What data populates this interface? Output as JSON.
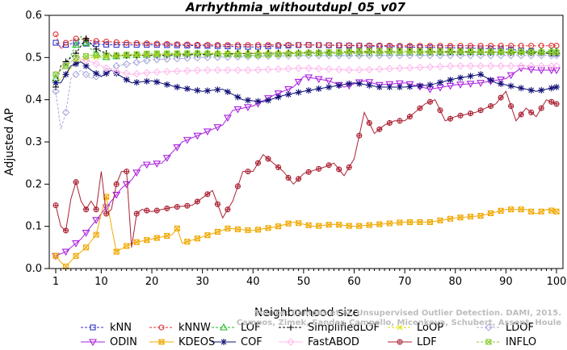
{
  "chart_data": {
    "type": "line",
    "title": "Arrhythmia_withoutdupl_05_v07",
    "xlabel": "Neighborhood size",
    "ylabel": "Adjusted AP",
    "xlim": [
      1,
      100
    ],
    "ylim": [
      0.0,
      0.6
    ],
    "xticks": [
      1,
      10,
      20,
      30,
      40,
      50,
      60,
      70,
      80,
      90,
      100
    ],
    "yticks": [
      "0.0",
      "0.1",
      "0.2",
      "0.3",
      "0.4",
      "0.5",
      "0.6"
    ],
    "ytick_values": [
      0,
      0.1,
      0.2,
      0.3,
      0.4,
      0.5,
      0.6
    ],
    "grid": false,
    "legend_position": "bottom",
    "credit": [
      "Source: Campos et al. Unsupervised Outlier Detection. DAMI, 2015.",
      "Campos, Zimek, Sander, Campello, Micenkova, Schubert, Assent, Houle"
    ],
    "series": [
      {
        "name": "kNN",
        "color": "#3333cc",
        "marker": "square",
        "dashed": true,
        "keys": [
          [
            1,
            0.535
          ],
          [
            2,
            0.525
          ],
          [
            3,
            0.53
          ],
          [
            5,
            0.535
          ],
          [
            8,
            0.532
          ],
          [
            12,
            0.53
          ],
          [
            20,
            0.53
          ],
          [
            30,
            0.528
          ],
          [
            40,
            0.525
          ],
          [
            50,
            0.53
          ],
          [
            60,
            0.528
          ],
          [
            70,
            0.525
          ],
          [
            80,
            0.523
          ],
          [
            90,
            0.52
          ],
          [
            95,
            0.515
          ],
          [
            98,
            0.51
          ],
          [
            100,
            0.51
          ]
        ]
      },
      {
        "name": "kNNW",
        "color": "#e03030",
        "marker": "circle",
        "dashed": true,
        "keys": [
          [
            1,
            0.555
          ],
          [
            2,
            0.52
          ],
          [
            3,
            0.535
          ],
          [
            5,
            0.545
          ],
          [
            8,
            0.54
          ],
          [
            15,
            0.535
          ],
          [
            30,
            0.53
          ],
          [
            50,
            0.53
          ],
          [
            70,
            0.528
          ],
          [
            100,
            0.528
          ]
        ]
      },
      {
        "name": "LOF",
        "color": "#22bb22",
        "marker": "triangle-up",
        "dashed": true,
        "keys": [
          [
            1,
            0.45
          ],
          [
            2,
            0.47
          ],
          [
            3,
            0.48
          ],
          [
            5,
            0.53
          ],
          [
            6,
            0.55
          ],
          [
            8,
            0.52
          ],
          [
            10,
            0.5
          ],
          [
            15,
            0.505
          ],
          [
            30,
            0.51
          ],
          [
            60,
            0.51
          ],
          [
            100,
            0.515
          ]
        ]
      },
      {
        "name": "SimplifiedLOF",
        "color": "#000000",
        "marker": "plus",
        "dashed": true,
        "keys": [
          [
            1,
            0.43
          ],
          [
            2,
            0.48
          ],
          [
            3,
            0.49
          ],
          [
            5,
            0.51
          ],
          [
            7,
            0.545
          ],
          [
            9,
            0.52
          ],
          [
            12,
            0.505
          ],
          [
            20,
            0.505
          ],
          [
            40,
            0.51
          ],
          [
            70,
            0.515
          ],
          [
            100,
            0.51
          ]
        ]
      },
      {
        "name": "LoOP",
        "color": "#dddd00",
        "marker": "x",
        "dashed": true,
        "keys": [
          [
            1,
            0.44
          ],
          [
            3,
            0.46
          ],
          [
            5,
            0.49
          ],
          [
            8,
            0.5
          ],
          [
            15,
            0.505
          ],
          [
            30,
            0.51
          ],
          [
            60,
            0.512
          ],
          [
            100,
            0.512
          ]
        ]
      },
      {
        "name": "LDOF",
        "color": "#aaaadd",
        "marker": "diamond",
        "dashed": true,
        "keys": [
          [
            1,
            0.42
          ],
          [
            2,
            0.33
          ],
          [
            3,
            0.37
          ],
          [
            4,
            0.45
          ],
          [
            6,
            0.47
          ],
          [
            8,
            0.45
          ],
          [
            10,
            0.46
          ],
          [
            13,
            0.48
          ],
          [
            20,
            0.495
          ],
          [
            30,
            0.5
          ],
          [
            50,
            0.505
          ],
          [
            100,
            0.505
          ]
        ]
      },
      {
        "name": "ODIN",
        "color": "#aa22dd",
        "marker": "triangle-down",
        "dashed": false,
        "keys": [
          [
            1,
            0.03
          ],
          [
            2,
            0.035
          ],
          [
            3,
            0.04
          ],
          [
            4,
            0.05
          ],
          [
            6,
            0.07
          ],
          [
            8,
            0.1
          ],
          [
            10,
            0.13
          ],
          [
            12,
            0.16
          ],
          [
            14,
            0.19
          ],
          [
            16,
            0.21
          ],
          [
            18,
            0.245
          ],
          [
            22,
            0.25
          ],
          [
            24,
            0.275
          ],
          [
            26,
            0.3
          ],
          [
            30,
            0.32
          ],
          [
            34,
            0.34
          ],
          [
            36,
            0.375
          ],
          [
            40,
            0.385
          ],
          [
            44,
            0.41
          ],
          [
            46,
            0.42
          ],
          [
            48,
            0.43
          ],
          [
            50,
            0.455
          ],
          [
            55,
            0.445
          ],
          [
            58,
            0.43
          ],
          [
            62,
            0.445
          ],
          [
            65,
            0.435
          ],
          [
            70,
            0.44
          ],
          [
            75,
            0.425
          ],
          [
            80,
            0.435
          ],
          [
            85,
            0.44
          ],
          [
            90,
            0.45
          ],
          [
            93,
            0.475
          ],
          [
            96,
            0.47
          ],
          [
            100,
            0.47
          ]
        ]
      },
      {
        "name": "KDEOS",
        "color": "#f0a800",
        "marker": "square-x",
        "dashed": false,
        "keys": [
          [
            1,
            0.03
          ],
          [
            2,
            0.015
          ],
          [
            3,
            0.005
          ],
          [
            5,
            0.03
          ],
          [
            7,
            0.05
          ],
          [
            9,
            0.08
          ],
          [
            10,
            0.13
          ],
          [
            11,
            0.17
          ],
          [
            12,
            0.1
          ],
          [
            13,
            0.04
          ],
          [
            16,
            0.06
          ],
          [
            20,
            0.07
          ],
          [
            24,
            0.08
          ],
          [
            25,
            0.095
          ],
          [
            26,
            0.06
          ],
          [
            30,
            0.075
          ],
          [
            35,
            0.095
          ],
          [
            40,
            0.09
          ],
          [
            45,
            0.1
          ],
          [
            48,
            0.11
          ],
          [
            52,
            0.1
          ],
          [
            56,
            0.105
          ],
          [
            60,
            0.1
          ],
          [
            65,
            0.105
          ],
          [
            70,
            0.11
          ],
          [
            75,
            0.11
          ],
          [
            80,
            0.12
          ],
          [
            85,
            0.125
          ],
          [
            90,
            0.14
          ],
          [
            94,
            0.14
          ],
          [
            96,
            0.13
          ],
          [
            98,
            0.14
          ],
          [
            100,
            0.135
          ]
        ]
      },
      {
        "name": "COF",
        "color": "#111177",
        "marker": "star",
        "dashed": false,
        "keys": [
          [
            1,
            0.44
          ],
          [
            2,
            0.44
          ],
          [
            3,
            0.46
          ],
          [
            4,
            0.48
          ],
          [
            6,
            0.49
          ],
          [
            8,
            0.47
          ],
          [
            10,
            0.455
          ],
          [
            12,
            0.47
          ],
          [
            14,
            0.455
          ],
          [
            16,
            0.44
          ],
          [
            20,
            0.445
          ],
          [
            25,
            0.43
          ],
          [
            30,
            0.42
          ],
          [
            34,
            0.425
          ],
          [
            38,
            0.4
          ],
          [
            42,
            0.395
          ],
          [
            46,
            0.41
          ],
          [
            50,
            0.42
          ],
          [
            55,
            0.43
          ],
          [
            60,
            0.44
          ],
          [
            65,
            0.43
          ],
          [
            70,
            0.43
          ],
          [
            75,
            0.435
          ],
          [
            80,
            0.45
          ],
          [
            85,
            0.46
          ],
          [
            88,
            0.44
          ],
          [
            92,
            0.43
          ],
          [
            96,
            0.42
          ],
          [
            100,
            0.43
          ]
        ]
      },
      {
        "name": "FastABOD",
        "color": "#ffbbee",
        "marker": "diamond",
        "dashed": false,
        "keys": [
          [
            1,
            0.46
          ],
          [
            3,
            0.48
          ],
          [
            5,
            0.5
          ],
          [
            8,
            0.49
          ],
          [
            12,
            0.47
          ],
          [
            16,
            0.46
          ],
          [
            20,
            0.465
          ],
          [
            30,
            0.47
          ],
          [
            40,
            0.47
          ],
          [
            50,
            0.475
          ],
          [
            60,
            0.47
          ],
          [
            70,
            0.475
          ],
          [
            80,
            0.48
          ],
          [
            90,
            0.48
          ],
          [
            100,
            0.48
          ]
        ]
      },
      {
        "name": "LDF",
        "color": "#aa2233",
        "marker": "circle-plus",
        "dashed": false,
        "keys": [
          [
            1,
            0.15
          ],
          [
            2,
            0.1
          ],
          [
            3,
            0.09
          ],
          [
            4,
            0.165
          ],
          [
            5,
            0.205
          ],
          [
            6,
            0.16
          ],
          [
            7,
            0.14
          ],
          [
            8,
            0.16
          ],
          [
            9,
            0.14
          ],
          [
            10,
            0.23
          ],
          [
            11,
            0.13
          ],
          [
            12,
            0.14
          ],
          [
            13,
            0.2
          ],
          [
            14,
            0.23
          ],
          [
            15,
            0.23
          ],
          [
            16,
            0.05
          ],
          [
            17,
            0.13
          ],
          [
            18,
            0.14
          ],
          [
            20,
            0.135
          ],
          [
            24,
            0.145
          ],
          [
            28,
            0.15
          ],
          [
            32,
            0.185
          ],
          [
            34,
            0.12
          ],
          [
            36,
            0.16
          ],
          [
            38,
            0.23
          ],
          [
            40,
            0.23
          ],
          [
            42,
            0.27
          ],
          [
            44,
            0.25
          ],
          [
            46,
            0.23
          ],
          [
            48,
            0.2
          ],
          [
            50,
            0.225
          ],
          [
            54,
            0.24
          ],
          [
            56,
            0.25
          ],
          [
            58,
            0.22
          ],
          [
            60,
            0.26
          ],
          [
            62,
            0.37
          ],
          [
            64,
            0.32
          ],
          [
            66,
            0.34
          ],
          [
            68,
            0.35
          ],
          [
            70,
            0.35
          ],
          [
            72,
            0.37
          ],
          [
            74,
            0.39
          ],
          [
            76,
            0.4
          ],
          [
            78,
            0.35
          ],
          [
            80,
            0.36
          ],
          [
            84,
            0.37
          ],
          [
            88,
            0.39
          ],
          [
            90,
            0.42
          ],
          [
            92,
            0.35
          ],
          [
            94,
            0.38
          ],
          [
            96,
            0.36
          ],
          [
            98,
            0.4
          ],
          [
            100,
            0.39
          ]
        ]
      },
      {
        "name": "INFLO",
        "color": "#88cc33",
        "marker": "square-x",
        "dashed": true,
        "keys": [
          [
            1,
            0.46
          ],
          [
            3,
            0.48
          ],
          [
            5,
            0.5
          ],
          [
            8,
            0.505
          ],
          [
            12,
            0.505
          ],
          [
            20,
            0.51
          ],
          [
            30,
            0.51
          ],
          [
            40,
            0.505
          ],
          [
            60,
            0.515
          ],
          [
            80,
            0.515
          ],
          [
            100,
            0.512
          ]
        ]
      }
    ],
    "legend": {
      "rows": [
        [
          "kNN",
          "kNNW",
          "LOF",
          "SimplifiedLOF",
          "LoOP",
          "LDOF"
        ],
        [
          "ODIN",
          "KDEOS",
          "COF",
          "FastABOD",
          "LDF",
          "INFLO"
        ]
      ]
    }
  }
}
